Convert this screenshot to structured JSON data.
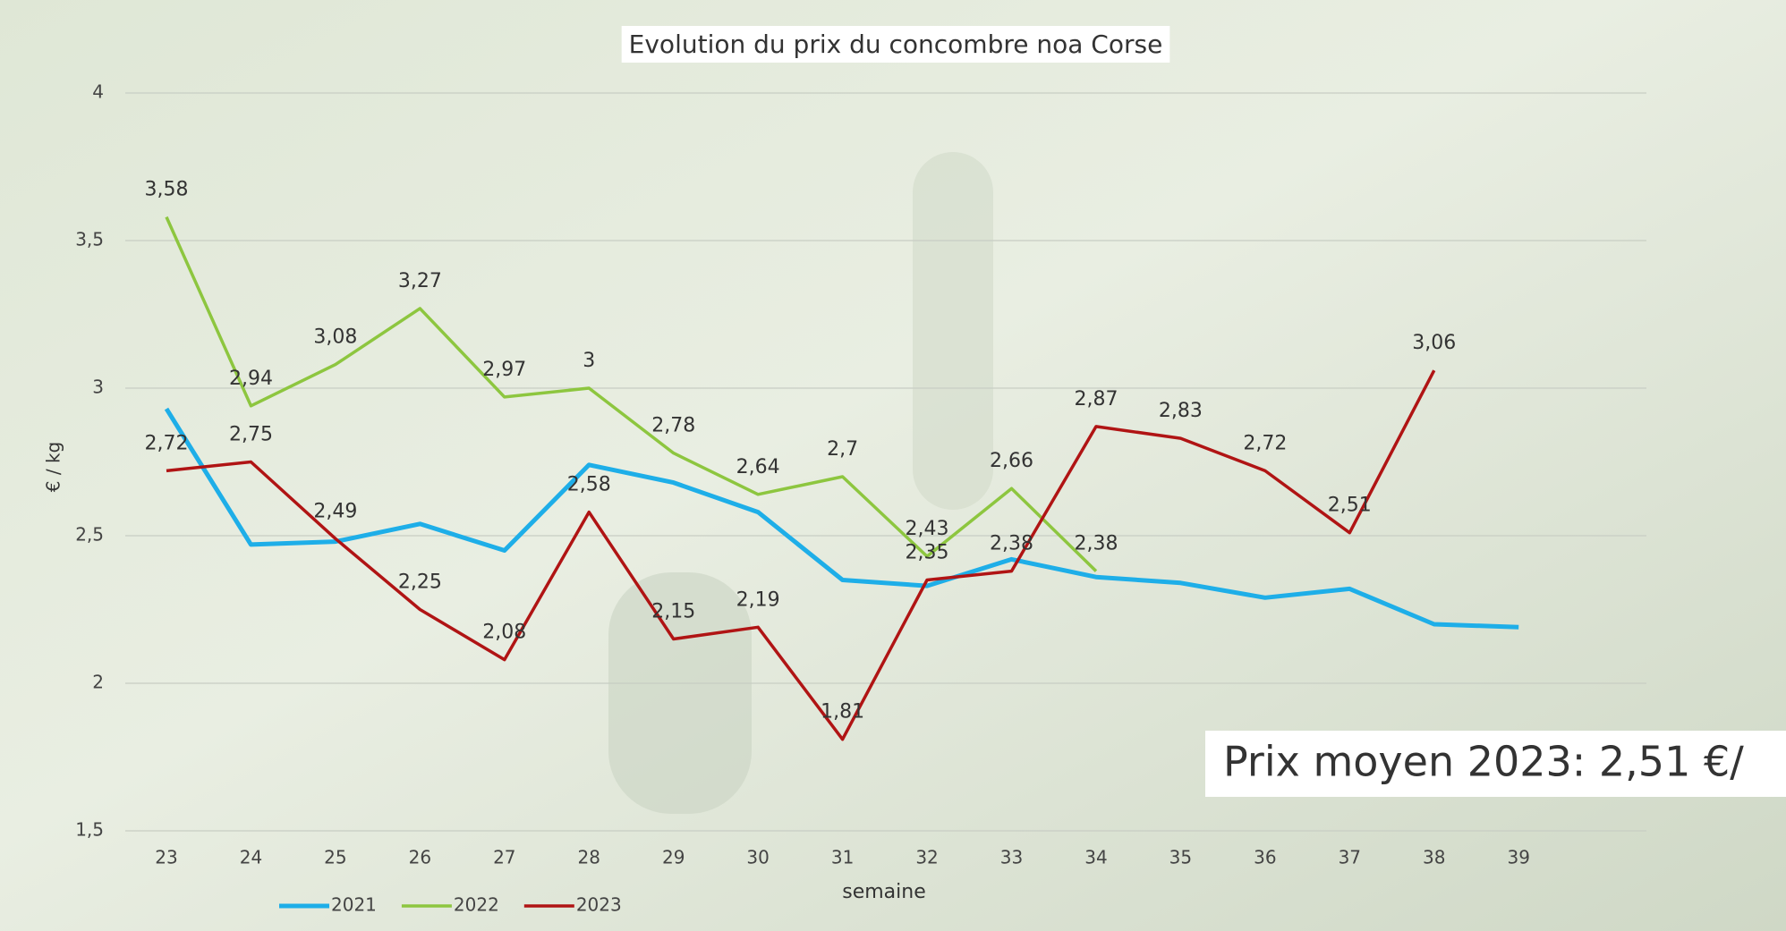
{
  "chart_data": {
    "type": "line",
    "title": "Evolution du prix du concombre noa Corse",
    "xlabel": "semaine",
    "ylabel": "€ / kg",
    "categories": [
      "23",
      "24",
      "25",
      "26",
      "27",
      "28",
      "29",
      "30",
      "31",
      "32",
      "33",
      "34",
      "35",
      "36",
      "37",
      "38",
      "39"
    ],
    "series": [
      {
        "name": "2021",
        "color": "#1eaee8",
        "values": [
          2.93,
          2.47,
          2.48,
          2.54,
          2.45,
          2.74,
          2.68,
          2.58,
          2.35,
          2.33,
          2.42,
          2.36,
          2.34,
          2.29,
          2.32,
          2.2,
          2.19
        ]
      },
      {
        "name": "2022",
        "color": "#8dc63f",
        "values": [
          3.58,
          2.94,
          3.08,
          3.27,
          2.97,
          3,
          2.78,
          2.64,
          2.7,
          2.43,
          2.66,
          2.38,
          null,
          null,
          null,
          null,
          null
        ],
        "value_labels": [
          "3,58",
          "2,94",
          "3,08",
          "3,27",
          "2,97",
          "3",
          "2,78",
          "2,64",
          "2,7",
          "2,43",
          "2,66",
          "2,38",
          null,
          null,
          null,
          null,
          null
        ]
      },
      {
        "name": "2023",
        "color": "#b01414",
        "values": [
          2.72,
          2.75,
          2.49,
          2.25,
          2.08,
          2.58,
          2.15,
          2.19,
          1.81,
          2.35,
          2.38,
          2.87,
          2.83,
          2.72,
          2.51,
          3.06,
          null
        ],
        "value_labels": [
          "2,72",
          "2,75",
          "2,49",
          "2,25",
          "2,08",
          "2,58",
          "2,15",
          "2,19",
          "1,81",
          "2,35",
          "2,38",
          "2,87",
          "2,83",
          "2,72",
          "2,51",
          "3,06",
          null
        ]
      }
    ],
    "ylim": [
      1.5,
      4
    ],
    "yticks": [
      {
        "value": 1.5,
        "label": "1,5"
      },
      2,
      {
        "value": 2.5,
        "label": "2,5"
      },
      3,
      {
        "value": 3.5,
        "label": "3,5"
      },
      4
    ],
    "grid": true,
    "legend": "bottom-left",
    "annotation": "Prix moyen 2023: 2,51 €/"
  }
}
